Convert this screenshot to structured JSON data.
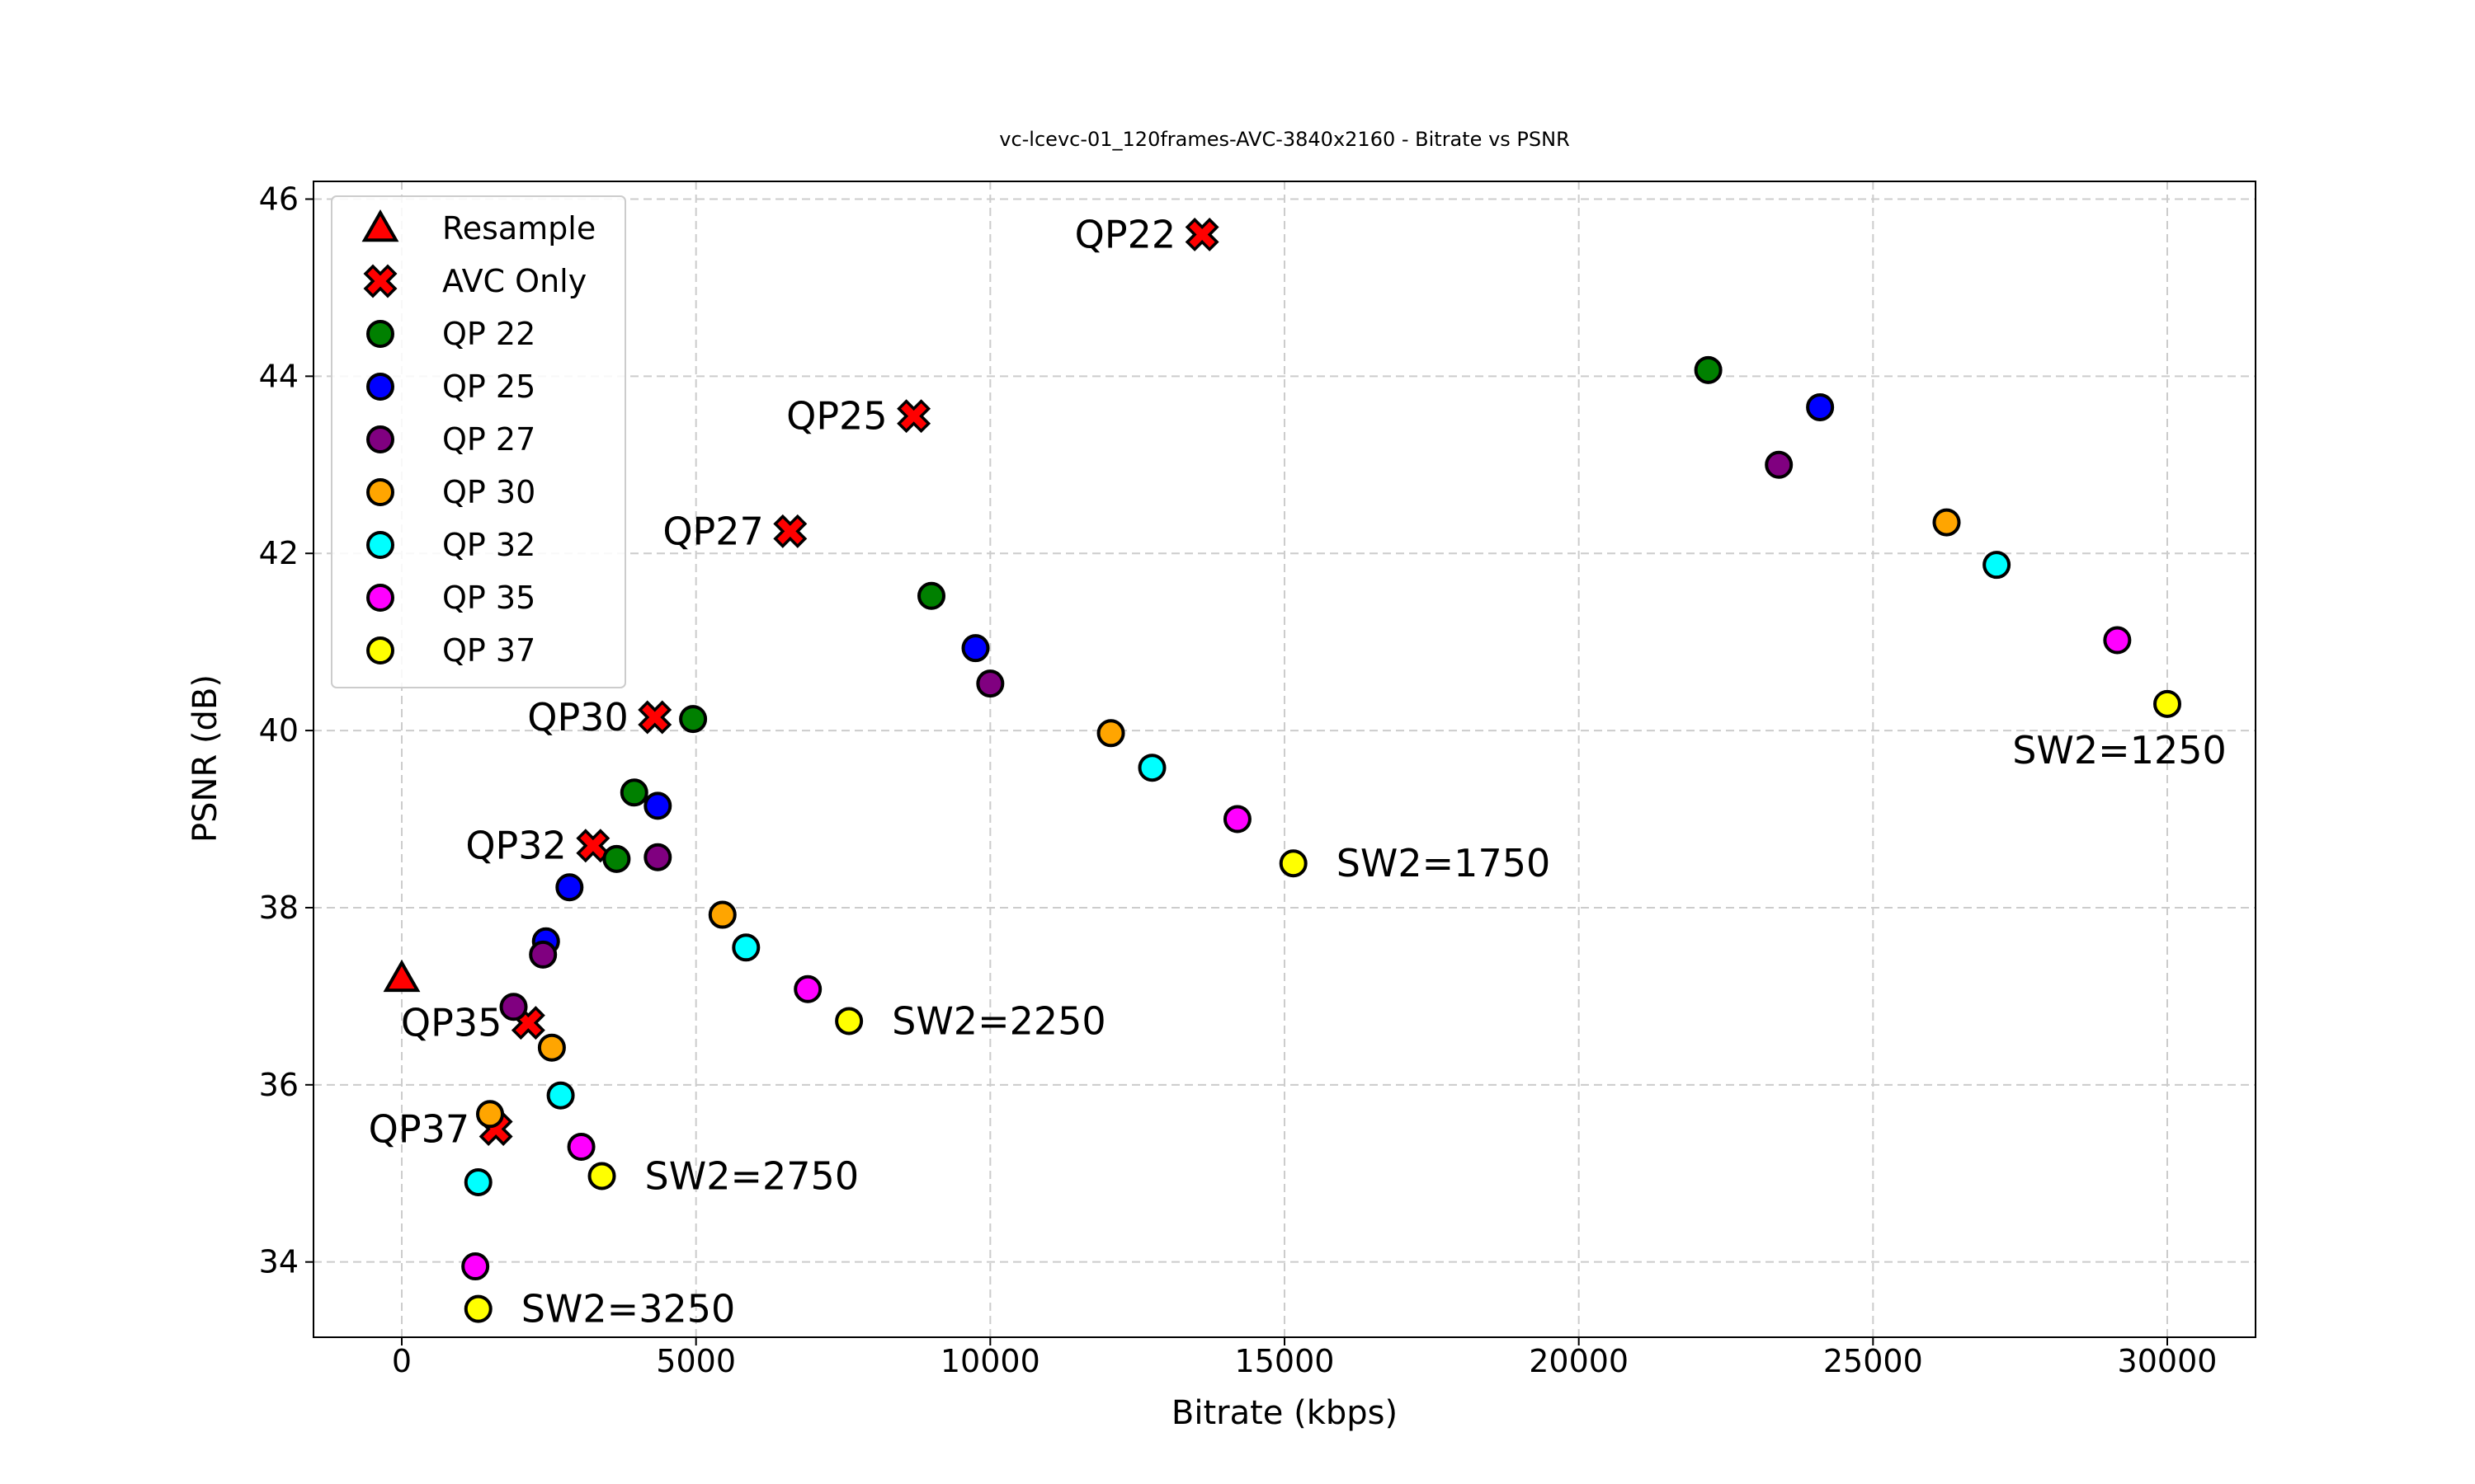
{
  "chart_data": {
    "type": "scatter",
    "title": "vc-lcevc-01_120frames-AVC-3840x2160 - Bitrate vs PSNR",
    "xlabel": "Bitrate (kbps)",
    "ylabel": "PSNR (dB)",
    "xlim": [
      -1500,
      31500
    ],
    "ylim": [
      33.15,
      46.2
    ],
    "xticks": [
      0,
      5000,
      10000,
      15000,
      20000,
      25000,
      30000
    ],
    "yticks": [
      34,
      36,
      38,
      40,
      42,
      44,
      46
    ],
    "grid": true,
    "legend_position": "top-left",
    "series": [
      {
        "name": "Resample",
        "marker": "triangle",
        "color": "#ff0000",
        "points": [
          [
            0,
            37.2
          ]
        ]
      },
      {
        "name": "AVC Only",
        "marker": "x",
        "color": "#ff0000",
        "points": [
          [
            13600,
            45.6
          ],
          [
            8700,
            43.55
          ],
          [
            6600,
            42.25
          ],
          [
            4300,
            40.15
          ],
          [
            3250,
            38.7
          ],
          [
            2150,
            36.7
          ],
          [
            1600,
            35.5
          ]
        ]
      },
      {
        "name": "QP 22",
        "marker": "circle",
        "color": "#008000",
        "points": [
          [
            22200,
            44.07
          ],
          [
            9000,
            41.52
          ],
          [
            4950,
            40.13
          ],
          [
            3950,
            39.3
          ],
          [
            3650,
            38.55
          ]
        ]
      },
      {
        "name": "QP 25",
        "marker": "circle",
        "color": "#0000ff",
        "points": [
          [
            24100,
            43.65
          ],
          [
            9750,
            40.93
          ],
          [
            4350,
            39.15
          ],
          [
            2850,
            38.23
          ],
          [
            2450,
            37.62
          ]
        ]
      },
      {
        "name": "QP 27",
        "marker": "circle",
        "color": "#800080",
        "points": [
          [
            23400,
            43.0
          ],
          [
            10000,
            40.53
          ],
          [
            4350,
            38.57
          ],
          [
            2400,
            37.47
          ],
          [
            1900,
            36.88
          ]
        ]
      },
      {
        "name": "QP 30",
        "marker": "circle",
        "color": "#ffa500",
        "points": [
          [
            26250,
            42.35
          ],
          [
            12050,
            39.97
          ],
          [
            5450,
            37.92
          ],
          [
            2550,
            36.42
          ],
          [
            1500,
            35.67
          ]
        ]
      },
      {
        "name": "QP 32",
        "marker": "circle",
        "color": "#00ffff",
        "points": [
          [
            27100,
            41.87
          ],
          [
            12750,
            39.58
          ],
          [
            5850,
            37.55
          ],
          [
            2700,
            35.88
          ],
          [
            1300,
            34.9
          ]
        ]
      },
      {
        "name": "QP 35",
        "marker": "circle",
        "color": "#ff00ff",
        "points": [
          [
            29150,
            41.02
          ],
          [
            14200,
            39.0
          ],
          [
            6900,
            37.08
          ],
          [
            3050,
            35.3
          ],
          [
            1250,
            33.95
          ]
        ]
      },
      {
        "name": "QP 37",
        "marker": "circle",
        "color": "#ffff00",
        "points": [
          [
            30000,
            40.3
          ],
          [
            15150,
            38.5
          ],
          [
            7600,
            36.72
          ],
          [
            3400,
            34.97
          ],
          [
            1300,
            33.47
          ]
        ]
      }
    ],
    "annotations": [
      {
        "text": "QP22",
        "x": 13600,
        "y": 45.6,
        "anchor": "left"
      },
      {
        "text": "QP25",
        "x": 8700,
        "y": 43.55,
        "anchor": "left"
      },
      {
        "text": "QP27",
        "x": 6600,
        "y": 42.25,
        "anchor": "left"
      },
      {
        "text": "QP30",
        "x": 4300,
        "y": 40.15,
        "anchor": "left"
      },
      {
        "text": "QP32",
        "x": 3250,
        "y": 38.7,
        "anchor": "left"
      },
      {
        "text": "QP35",
        "x": 2150,
        "y": 36.7,
        "anchor": "left"
      },
      {
        "text": "QP37",
        "x": 1600,
        "y": 35.5,
        "anchor": "left"
      },
      {
        "text": "SW2=1250",
        "x": 30000,
        "y": 40.3,
        "anchor": "below"
      },
      {
        "text": "SW2=1750",
        "x": 15150,
        "y": 38.5,
        "anchor": "right"
      },
      {
        "text": "SW2=2250",
        "x": 7600,
        "y": 36.72,
        "anchor": "right"
      },
      {
        "text": "SW2=2750",
        "x": 3400,
        "y": 34.97,
        "anchor": "right"
      },
      {
        "text": "SW2=3250",
        "x": 1300,
        "y": 33.47,
        "anchor": "right"
      }
    ]
  }
}
